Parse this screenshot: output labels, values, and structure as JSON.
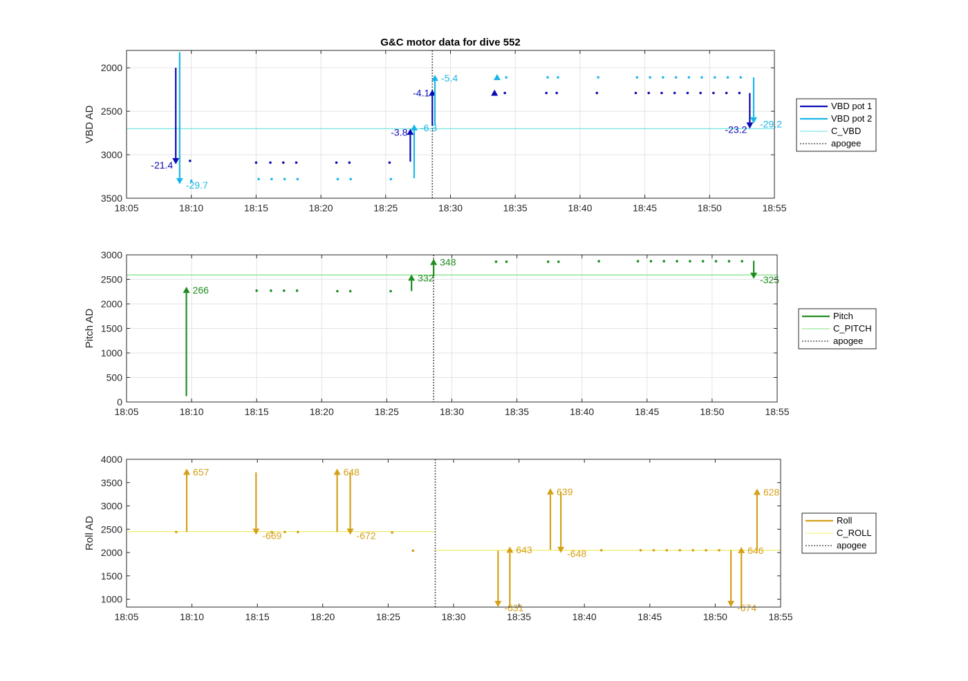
{
  "chart_data": [
    {
      "type": "scatter",
      "title": "G&C motor data for dive 552",
      "ylabel": "VBD AD",
      "xlim": [
        "18:05",
        "18:55"
      ],
      "xticks": [
        "18:05",
        "18:10",
        "18:15",
        "18:20",
        "18:25",
        "18:30",
        "18:35",
        "18:40",
        "18:45",
        "18:50",
        "18:55"
      ],
      "ylim": [
        1800,
        3500
      ],
      "yreverse": true,
      "yticks": [
        2000,
        2500,
        3000,
        3500
      ],
      "grid": true,
      "legend": {
        "placement": "outside-right",
        "entries": [
          {
            "name": "VBD pot 1",
            "color": "#0a0ab4",
            "style": "thick"
          },
          {
            "name": "VBD pot 2",
            "color": "#18b6e8",
            "style": "thick"
          },
          {
            "name": "C_VBD",
            "color": "#66e0e0",
            "style": "thin"
          },
          {
            "name": "apogee",
            "color": "#555555",
            "style": "dotted"
          }
        ]
      },
      "hlines": [
        {
          "y": 2700,
          "color": "#66e0e0"
        }
      ],
      "vlines": [
        {
          "x": "18:28.6",
          "color": "#555555"
        }
      ],
      "series": [
        {
          "name": "VBD pot 1",
          "color": "#0a0ab4",
          "points": [
            [
              "18:09.9",
              3070
            ],
            [
              "18:15.0",
              3090
            ],
            [
              "18:16.1",
              3090
            ],
            [
              "18:17.1",
              3090
            ],
            [
              "18:18.1",
              3090
            ],
            [
              "18:21.2",
              3090
            ],
            [
              "18:22.2",
              3090
            ],
            [
              "18:25.3",
              3090
            ],
            [
              "18:34.2",
              2290
            ],
            [
              "18:37.4",
              2290
            ],
            [
              "18:38.2",
              2290
            ],
            [
              "18:41.3",
              2290
            ],
            [
              "18:44.3",
              2290
            ],
            [
              "18:45.3",
              2290
            ],
            [
              "18:46.3",
              2290
            ],
            [
              "18:47.3",
              2290
            ],
            [
              "18:48.3",
              2290
            ],
            [
              "18:49.3",
              2290
            ],
            [
              "18:50.3",
              2290
            ],
            [
              "18:51.3",
              2290
            ],
            [
              "18:52.3",
              2290
            ]
          ]
        },
        {
          "name": "VBD pot 2",
          "color": "#18b6e8",
          "points": [
            [
              "18:10.0",
              3300
            ],
            [
              "18:15.2",
              3280
            ],
            [
              "18:16.2",
              3280
            ],
            [
              "18:17.2",
              3280
            ],
            [
              "18:18.2",
              3280
            ],
            [
              "18:21.3",
              3280
            ],
            [
              "18:22.3",
              3280
            ],
            [
              "18:25.4",
              3280
            ],
            [
              "18:34.3",
              2110
            ],
            [
              "18:37.5",
              2110
            ],
            [
              "18:38.3",
              2110
            ],
            [
              "18:41.4",
              2110
            ],
            [
              "18:44.4",
              2110
            ],
            [
              "18:45.4",
              2110
            ],
            [
              "18:46.4",
              2110
            ],
            [
              "18:47.4",
              2110
            ],
            [
              "18:48.4",
              2110
            ],
            [
              "18:49.4",
              2110
            ],
            [
              "18:50.4",
              2110
            ],
            [
              "18:51.4",
              2110
            ],
            [
              "18:52.4",
              2110
            ]
          ]
        }
      ],
      "markers": [
        {
          "x": "18:33.4",
          "y": 2290,
          "color": "#0a0ab4"
        },
        {
          "x": "18:33.6",
          "y": 2110,
          "color": "#18b6e8"
        }
      ],
      "arrows": [
        {
          "x": "18:08.8",
          "y0": 2000,
          "y1": 3110,
          "color": "#0a0ab4",
          "label": "-21.4",
          "label_side": "left"
        },
        {
          "x": "18:09.1",
          "y0": 1820,
          "y1": 3340,
          "color": "#18b6e8",
          "label": "-29.7",
          "label_side": "right"
        },
        {
          "x": "18:26.9",
          "y0": 3080,
          "y1": 2700,
          "color": "#0a0ab4",
          "label": "-3.8",
          "label_side": "left"
        },
        {
          "x": "18:27.2",
          "y0": 3270,
          "y1": 2650,
          "color": "#18b6e8",
          "label": "-6.3",
          "label_side": "right"
        },
        {
          "x": "18:28.6",
          "y0": 2660,
          "y1": 2250,
          "color": "#0a0ab4",
          "label": "-4.1",
          "label_side": "left"
        },
        {
          "x": "18:28.8",
          "y0": 2660,
          "y1": 2080,
          "color": "#18b6e8",
          "label": "-5.4",
          "label_side": "right"
        },
        {
          "x": "18:53.1",
          "y0": 2290,
          "y1": 2700,
          "color": "#0a0ab4",
          "label": "-23.2",
          "label_side": "left"
        },
        {
          "x": "18:53.4",
          "y0": 2110,
          "y1": 2640,
          "color": "#18b6e8",
          "label": "-29.2",
          "label_side": "right"
        }
      ]
    },
    {
      "type": "scatter",
      "title": "",
      "ylabel": "Pitch AD",
      "xlim": [
        "18:05",
        "18:55"
      ],
      "xticks": [
        "18:05",
        "18:10",
        "18:15",
        "18:20",
        "18:25",
        "18:30",
        "18:35",
        "18:40",
        "18:45",
        "18:50",
        "18:55"
      ],
      "ylim": [
        0,
        3000
      ],
      "yreverse": false,
      "yticks": [
        0,
        500,
        1000,
        1500,
        2000,
        2500,
        3000
      ],
      "grid": true,
      "legend": {
        "placement": "outside-right",
        "entries": [
          {
            "name": "Pitch",
            "color": "#1e8c1e",
            "style": "thick"
          },
          {
            "name": "C_PITCH",
            "color": "#7fe07f",
            "style": "thin"
          },
          {
            "name": "apogee",
            "color": "#555555",
            "style": "dotted"
          }
        ]
      },
      "hlines": [
        {
          "y": 2590,
          "color": "#7fe07f"
        }
      ],
      "vlines": [
        {
          "x": "18:28.6",
          "color": "#555555"
        }
      ],
      "series": [
        {
          "name": "Pitch",
          "color": "#1e8c1e",
          "points": [
            [
              "18:15.0",
              2270
            ],
            [
              "18:16.1",
              2270
            ],
            [
              "18:17.1",
              2270
            ],
            [
              "18:18.1",
              2270
            ],
            [
              "18:21.2",
              2260
            ],
            [
              "18:22.2",
              2260
            ],
            [
              "18:25.3",
              2260
            ],
            [
              "18:33.4",
              2860
            ],
            [
              "18:34.2",
              2860
            ],
            [
              "18:37.4",
              2860
            ],
            [
              "18:38.2",
              2860
            ],
            [
              "18:41.3",
              2870
            ],
            [
              "18:44.3",
              2870
            ],
            [
              "18:45.3",
              2870
            ],
            [
              "18:46.3",
              2870
            ],
            [
              "18:47.3",
              2870
            ],
            [
              "18:48.3",
              2870
            ],
            [
              "18:49.3",
              2870
            ],
            [
              "18:50.3",
              2870
            ],
            [
              "18:51.3",
              2870
            ],
            [
              "18:52.3",
              2870
            ]
          ]
        }
      ],
      "markers": [],
      "arrows": [
        {
          "x": "18:09.6",
          "y0": 120,
          "y1": 2350,
          "color": "#1e8c1e",
          "label": "266",
          "label_side": "right"
        },
        {
          "x": "18:26.9",
          "y0": 2260,
          "y1": 2600,
          "color": "#1e8c1e",
          "label": "332",
          "label_side": "right"
        },
        {
          "x": "18:28.6",
          "y0": 2560,
          "y1": 2920,
          "color": "#1e8c1e",
          "label": "348",
          "label_side": "right"
        },
        {
          "x": "18:53.2",
          "y0": 2880,
          "y1": 2510,
          "color": "#1e8c1e",
          "label": "-325",
          "label_side": "right"
        }
      ]
    },
    {
      "type": "scatter",
      "title": "",
      "ylabel": "Roll AD",
      "xlim": [
        "18:05",
        "18:55"
      ],
      "xticks": [
        "18:05",
        "18:10",
        "18:15",
        "18:20",
        "18:25",
        "18:30",
        "18:35",
        "18:40",
        "18:45",
        "18:50",
        "18:55"
      ],
      "ylim": [
        830,
        4000
      ],
      "yreverse": false,
      "yticks": [
        1000,
        1500,
        2000,
        2500,
        3000,
        3500,
        4000
      ],
      "grid": false,
      "legend": {
        "placement": "outside-right",
        "entries": [
          {
            "name": "Roll",
            "color": "#d4a017",
            "style": "thick"
          },
          {
            "name": "C_ROLL",
            "color": "#f2ec6a",
            "style": "thin"
          },
          {
            "name": "apogee",
            "color": "#555555",
            "style": "dotted"
          }
        ]
      },
      "hsegments": [
        {
          "x0": "18:05",
          "x1": "18:28.6",
          "y": 2450,
          "color": "#f2ec6a"
        },
        {
          "x0": "18:28.6",
          "x1": "18:55",
          "y": 2050,
          "color": "#f2ec6a"
        }
      ],
      "vlines": [
        {
          "x": "18:28.6",
          "color": "#555555"
        }
      ],
      "series": [
        {
          "name": "Roll",
          "color": "#d4a017",
          "points": [
            [
              "18:08.8",
              2440
            ],
            [
              "18:16.1",
              2440
            ],
            [
              "18:17.1",
              2440
            ],
            [
              "18:18.1",
              2440
            ],
            [
              "18:25.3",
              2430
            ],
            [
              "18:26.9",
              2040
            ],
            [
              "18:41.3",
              2050
            ],
            [
              "18:44.3",
              2050
            ],
            [
              "18:45.3",
              2050
            ],
            [
              "18:46.3",
              2050
            ],
            [
              "18:47.3",
              2050
            ],
            [
              "18:48.3",
              2050
            ],
            [
              "18:49.3",
              2050
            ],
            [
              "18:50.3",
              2050
            ]
          ]
        }
      ],
      "markers": [],
      "arrows": [
        {
          "x": "18:09.6",
          "y0": 2440,
          "y1": 3800,
          "color": "#d4a017",
          "label": "657",
          "label_side": "right"
        },
        {
          "x": "18:14.9",
          "y0": 3720,
          "y1": 2380,
          "color": "#d4a017",
          "label": "-669",
          "label_side": "right"
        },
        {
          "x": "18:21.1",
          "y0": 2440,
          "y1": 3800,
          "color": "#d4a017",
          "label": "648",
          "label_side": "right"
        },
        {
          "x": "18:22.1",
          "y0": 3720,
          "y1": 2380,
          "color": "#d4a017",
          "label": "-672",
          "label_side": "right"
        },
        {
          "x": "18:33.4",
          "y0": 2040,
          "y1": 830,
          "color": "#d4a017",
          "label": "-631",
          "label_side": "right"
        },
        {
          "x": "18:34.3",
          "y0": 830,
          "y1": 2130,
          "color": "#d4a017",
          "label": "643",
          "label_side": "right"
        },
        {
          "x": "18:37.4",
          "y0": 2060,
          "y1": 3380,
          "color": "#d4a017",
          "label": "639",
          "label_side": "right"
        },
        {
          "x": "18:38.2",
          "y0": 3300,
          "y1": 1990,
          "color": "#d4a017",
          "label": "-648",
          "label_side": "right"
        },
        {
          "x": "18:51.2",
          "y0": 2050,
          "y1": 830,
          "color": "#d4a017",
          "label": "-674",
          "label_side": "right"
        },
        {
          "x": "18:52.0",
          "y0": 830,
          "y1": 2120,
          "color": "#d4a017",
          "label": "646",
          "label_side": "right"
        },
        {
          "x": "18:53.2",
          "y0": 2040,
          "y1": 3370,
          "color": "#d4a017",
          "label": "628",
          "label_side": "right"
        }
      ]
    }
  ]
}
